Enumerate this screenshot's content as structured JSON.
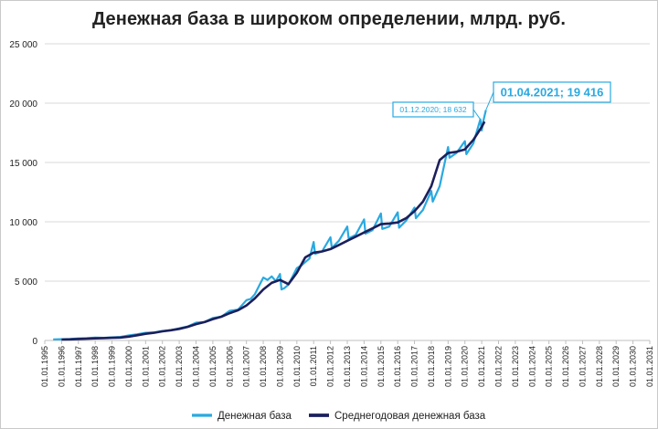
{
  "title": "Денежная база в широком определении, млрд. руб.",
  "colors": {
    "money_base": "#29a9e1",
    "average": "#1b1f5b",
    "grid": "#d9d9d9",
    "axis_text": "#222222",
    "callout_border": "#29a9e1"
  },
  "callouts": [
    {
      "label": "01.12.2020;  18 632",
      "x": "2020-12-01",
      "y": 18632,
      "size": "small"
    },
    {
      "label": "01.04.2021;  19 416",
      "x": "2021-04-01",
      "y": 19416,
      "size": "large"
    }
  ],
  "chart_data": {
    "type": "line",
    "title": "Денежная база в широком определении, млрд. руб.",
    "xlabel": "",
    "ylabel": "",
    "ylim": [
      0,
      25000
    ],
    "yticks": [
      0,
      5000,
      10000,
      15000,
      20000,
      25000
    ],
    "ytick_labels": [
      "0",
      "5 000",
      "10 000",
      "15 000",
      "20 000",
      "25 000"
    ],
    "xtick_labels": [
      "01.01.1995",
      "01.01.1996",
      "01.01.1997",
      "01.01.1998",
      "01.01.1999",
      "01.01.2000",
      "01.01.2001",
      "01.01.2002",
      "01.01.2003",
      "01.01.2004",
      "01.01.2005",
      "01.01.2006",
      "01.01.2007",
      "01.01.2008",
      "01.01.2009",
      "01.01.2010",
      "01.01.2011",
      "01.01.2012",
      "01.01.2013",
      "01.01.2014",
      "01.01.2015",
      "01.01.2016",
      "01.01.2017",
      "01.01.2018",
      "01.01.2019",
      "01.01.2020",
      "01.01.2021",
      "01.01.2022",
      "01.01.2023",
      "01.01.2024",
      "01.01.2025",
      "01.01.2026",
      "01.01.2027",
      "01.01.2028",
      "01.01.2029",
      "01.01.2030",
      "01.01.2031"
    ],
    "grid": true,
    "legend_position": "bottom",
    "series": [
      {
        "name": "Денежная база",
        "x": [
          "1995-07-01",
          "1996-01-01",
          "1996-07-01",
          "1997-01-01",
          "1997-07-01",
          "1998-01-01",
          "1998-07-01",
          "1999-01-01",
          "1999-07-01",
          "2000-01-01",
          "2000-07-01",
          "2001-01-01",
          "2001-07-01",
          "2002-01-01",
          "2002-07-01",
          "2003-01-01",
          "2003-07-01",
          "2004-01-01",
          "2004-07-01",
          "2005-01-01",
          "2005-07-01",
          "2006-01-01",
          "2006-07-01",
          "2007-01-01",
          "2007-04-01",
          "2007-07-01",
          "2008-01-01",
          "2008-04-01",
          "2008-07-01",
          "2008-10-01",
          "2009-01-01",
          "2009-02-01",
          "2009-04-01",
          "2009-07-01",
          "2010-01-01",
          "2010-04-01",
          "2010-07-01",
          "2010-10-01",
          "2011-01-01",
          "2011-02-01",
          "2011-07-01",
          "2012-01-01",
          "2012-02-01",
          "2012-07-01",
          "2013-01-01",
          "2013-02-01",
          "2013-07-01",
          "2014-01-01",
          "2014-02-01",
          "2014-07-01",
          "2015-01-01",
          "2015-02-01",
          "2015-07-01",
          "2016-01-01",
          "2016-02-01",
          "2016-07-01",
          "2017-01-01",
          "2017-02-01",
          "2017-07-01",
          "2018-01-01",
          "2018-02-01",
          "2018-07-01",
          "2019-01-01",
          "2019-02-01",
          "2019-07-01",
          "2020-01-01",
          "2020-02-01",
          "2020-07-01",
          "2020-12-01",
          "2021-01-01",
          "2021-02-01",
          "2021-04-01"
        ],
        "values": [
          90,
          110,
          130,
          180,
          190,
          240,
          220,
          260,
          300,
          420,
          520,
          650,
          680,
          800,
          860,
          1020,
          1180,
          1500,
          1550,
          1900,
          2000,
          2500,
          2600,
          3400,
          3500,
          3900,
          5300,
          5100,
          5400,
          5000,
          5600,
          4300,
          4400,
          4700,
          6100,
          6300,
          6600,
          6900,
          8300,
          7300,
          7500,
          8700,
          7800,
          8400,
          9600,
          8600,
          8900,
          10200,
          9000,
          9300,
          10700,
          9400,
          9600,
          10800,
          9500,
          10100,
          11200,
          10300,
          11000,
          12600,
          11700,
          13000,
          16300,
          15400,
          15800,
          16800,
          15700,
          16600,
          18632,
          17700,
          18400,
          19416
        ]
      },
      {
        "name": "Среднегодовая денежная база",
        "x": [
          "1996-01-01",
          "1996-07-01",
          "1997-01-01",
          "1997-07-01",
          "1998-01-01",
          "1998-07-01",
          "1999-01-01",
          "1999-07-01",
          "2000-01-01",
          "2000-07-01",
          "2001-01-01",
          "2001-07-01",
          "2002-01-01",
          "2002-07-01",
          "2003-01-01",
          "2003-07-01",
          "2004-01-01",
          "2004-07-01",
          "2005-01-01",
          "2005-07-01",
          "2006-01-01",
          "2006-07-01",
          "2007-01-01",
          "2007-07-01",
          "2008-01-01",
          "2008-07-01",
          "2009-01-01",
          "2009-07-01",
          "2010-01-01",
          "2010-07-01",
          "2011-01-01",
          "2011-07-01",
          "2012-01-01",
          "2012-07-01",
          "2013-01-01",
          "2013-07-01",
          "2014-01-01",
          "2014-07-01",
          "2015-01-01",
          "2015-07-01",
          "2016-01-01",
          "2016-07-01",
          "2017-01-01",
          "2017-07-01",
          "2018-01-01",
          "2018-07-01",
          "2019-01-01",
          "2019-07-01",
          "2020-01-01",
          "2020-07-01",
          "2021-01-01",
          "2021-03-01"
        ],
        "values": [
          80,
          95,
          120,
          150,
          180,
          200,
          220,
          250,
          320,
          440,
          560,
          650,
          770,
          860,
          980,
          1150,
          1380,
          1550,
          1800,
          2000,
          2300,
          2550,
          2950,
          3550,
          4300,
          4850,
          5100,
          4750,
          5700,
          7000,
          7400,
          7500,
          7700,
          8050,
          8400,
          8750,
          9100,
          9450,
          9800,
          9850,
          9950,
          10300,
          10900,
          11700,
          13000,
          15200,
          15800,
          15900,
          16100,
          16900,
          18000,
          18450
        ]
      }
    ]
  }
}
